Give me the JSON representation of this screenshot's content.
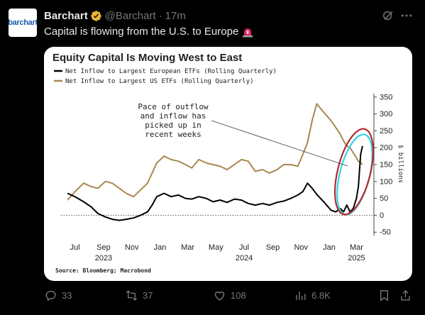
{
  "tweet": {
    "avatar_text": "barchart",
    "author_name": "Barchart",
    "handle": "@Barchart",
    "separator": "·",
    "time": "17m",
    "text": "Capital is flowing from the U.S. to Europe"
  },
  "chart_data": {
    "type": "line",
    "title": "Equity Capital Is Moving West to East",
    "series": [
      {
        "name": "Net Inflow to Largest European ETFs (Rolling Quarterly)",
        "color": "#000000",
        "x": [
          "2023-06-15",
          "2023-07-01",
          "2023-07-20",
          "2023-08-05",
          "2023-08-20",
          "2023-09-05",
          "2023-09-20",
          "2023-10-05",
          "2023-10-20",
          "2023-11-05",
          "2023-11-20",
          "2023-12-05",
          "2023-12-15",
          "2023-12-25",
          "2024-01-10",
          "2024-01-25",
          "2024-02-10",
          "2024-02-25",
          "2024-03-10",
          "2024-03-25",
          "2024-04-10",
          "2024-04-25",
          "2024-05-10",
          "2024-05-25",
          "2024-06-10",
          "2024-06-25",
          "2024-07-10",
          "2024-07-25",
          "2024-08-10",
          "2024-08-25",
          "2024-09-10",
          "2024-09-25",
          "2024-10-10",
          "2024-10-25",
          "2024-11-05",
          "2024-11-15",
          "2024-11-25",
          "2024-12-05",
          "2024-12-20",
          "2025-01-05",
          "2025-01-15",
          "2025-01-25",
          "2025-02-01",
          "2025-02-08",
          "2025-02-15",
          "2025-02-22",
          "2025-03-01",
          "2025-03-05",
          "2025-03-10",
          "2025-03-14"
        ],
        "values": [
          65,
          55,
          40,
          25,
          5,
          -5,
          -12,
          -15,
          -12,
          -8,
          0,
          10,
          30,
          55,
          65,
          55,
          60,
          50,
          48,
          55,
          50,
          40,
          45,
          38,
          48,
          45,
          35,
          30,
          35,
          30,
          38,
          42,
          50,
          60,
          70,
          95,
          80,
          62,
          40,
          15,
          10,
          20,
          10,
          30,
          10,
          20,
          50,
          85,
          180,
          205
        ]
      },
      {
        "name": "Net Inflow to Largest US ETFs (Rolling Quarterly)",
        "color": "#a8884f",
        "x": [
          "2023-06-15",
          "2023-07-01",
          "2023-07-20",
          "2023-08-05",
          "2023-08-20",
          "2023-09-05",
          "2023-09-20",
          "2023-10-05",
          "2023-10-20",
          "2023-11-05",
          "2023-11-20",
          "2023-12-05",
          "2023-12-15",
          "2023-12-25",
          "2024-01-10",
          "2024-01-25",
          "2024-02-10",
          "2024-02-25",
          "2024-03-10",
          "2024-03-25",
          "2024-04-10",
          "2024-04-25",
          "2024-05-10",
          "2024-05-25",
          "2024-06-10",
          "2024-06-25",
          "2024-07-10",
          "2024-07-25",
          "2024-08-10",
          "2024-08-25",
          "2024-09-10",
          "2024-09-25",
          "2024-10-10",
          "2024-10-25",
          "2024-11-05",
          "2024-11-15",
          "2024-11-25",
          "2024-12-05",
          "2024-12-20",
          "2025-01-05",
          "2025-01-15",
          "2025-01-25",
          "2025-02-01",
          "2025-02-08",
          "2025-02-15",
          "2025-02-22",
          "2025-03-01",
          "2025-03-05",
          "2025-03-10",
          "2025-03-14"
        ],
        "values": [
          45,
          70,
          95,
          85,
          80,
          100,
          95,
          80,
          65,
          55,
          75,
          95,
          125,
          155,
          175,
          165,
          160,
          150,
          140,
          165,
          155,
          150,
          145,
          135,
          150,
          165,
          160,
          130,
          135,
          125,
          135,
          150,
          150,
          145,
          180,
          215,
          280,
          330,
          305,
          280,
          260,
          240,
          220,
          205,
          200,
          185,
          170,
          160,
          155,
          150
        ]
      }
    ],
    "y_axis": {
      "label": "$ billions",
      "ticks": [
        350,
        300,
        250,
        200,
        150,
        100,
        50,
        0,
        -50
      ],
      "tick_labels": [
        "350",
        "300",
        "250",
        "200",
        "150",
        "100",
        "50",
        "0",
        "-50"
      ],
      "range": [
        -60,
        360
      ],
      "side": "right"
    },
    "x_axis": {
      "range": [
        "2023-06-01",
        "2025-03-31"
      ],
      "month_ticks": [
        {
          "date": "2023-07-01",
          "label": "Jul"
        },
        {
          "date": "2023-09-01",
          "label": "Sep"
        },
        {
          "date": "2023-11-01",
          "label": "Nov"
        },
        {
          "date": "2024-01-01",
          "label": "Jan"
        },
        {
          "date": "2024-03-01",
          "label": "Mar"
        },
        {
          "date": "2024-05-01",
          "label": "May"
        },
        {
          "date": "2024-07-01",
          "label": "Jul"
        },
        {
          "date": "2024-09-01",
          "label": "Sep"
        },
        {
          "date": "2024-11-01",
          "label": "Nov"
        },
        {
          "date": "2025-01-01",
          "label": "Jan"
        },
        {
          "date": "2025-03-01",
          "label": "Mar"
        }
      ],
      "year_labels": [
        {
          "date": "2023-09-01",
          "label": "2023"
        },
        {
          "date": "2024-07-01",
          "label": "2024"
        },
        {
          "date": "2025-03-01",
          "label": "2025"
        }
      ]
    },
    "annotation": {
      "lines": [
        "Pace of outflow",
        "and inflow has",
        "picked up in",
        "recent weeks"
      ]
    },
    "source": "Source: Bloomberg; Macrobond",
    "grid": false,
    "legend_position": "top-left",
    "zero_line": "dotted"
  },
  "actions": {
    "replies": "33",
    "reposts": "37",
    "likes": "108",
    "views": "6.8K"
  },
  "colors": {
    "background": "#000000",
    "text_primary": "#e7e9ea",
    "text_secondary": "#71767b",
    "verified_gold": "#e9b530",
    "highlight_red": "#b22a30",
    "highlight_cyan": "#3ad3e6"
  },
  "icons": [
    "verified-badge-icon",
    "grok-icon",
    "more-icon",
    "siren-emoji-icon",
    "reply-icon",
    "repost-icon",
    "like-icon",
    "views-icon",
    "bookmark-icon",
    "share-icon"
  ]
}
